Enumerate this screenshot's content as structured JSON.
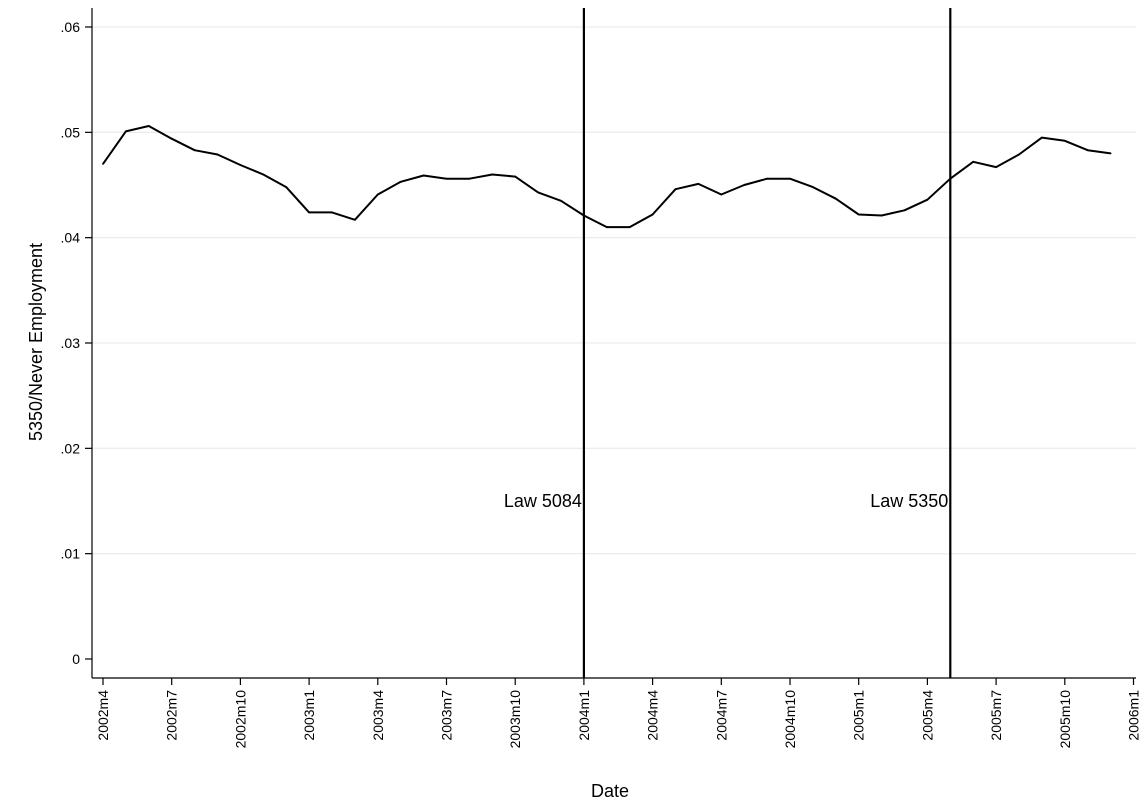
{
  "chart_data": {
    "type": "line",
    "xlabel": "Date",
    "ylabel": "5350/Never Employment",
    "ylim": [
      0,
      0.06
    ],
    "yticks": [
      {
        "value": 0,
        "label": "0"
      },
      {
        "value": 0.01,
        "label": ".01"
      },
      {
        "value": 0.02,
        "label": ".02"
      },
      {
        "value": 0.03,
        "label": ".03"
      },
      {
        "value": 0.04,
        "label": ".04"
      },
      {
        "value": 0.05,
        "label": ".05"
      },
      {
        "value": 0.06,
        "label": ".06"
      }
    ],
    "xticks": [
      "2002m4",
      "2002m7",
      "2002m10",
      "2003m1",
      "2003m4",
      "2003m7",
      "2003m10",
      "2004m1",
      "2004m4",
      "2004m7",
      "2004m10",
      "2005m1",
      "2005m4",
      "2005m7",
      "2005m10",
      "2006m1"
    ],
    "grid": "horizontal",
    "series": [
      {
        "x": [
          "2002m4",
          "2002m5",
          "2002m6",
          "2002m7",
          "2002m8",
          "2002m9",
          "2002m10",
          "2002m11",
          "2002m12",
          "2003m1",
          "2003m2",
          "2003m3",
          "2003m4",
          "2003m5",
          "2003m6",
          "2003m7",
          "2003m8",
          "2003m9",
          "2003m10",
          "2003m11",
          "2003m12",
          "2004m1",
          "2004m2",
          "2004m3",
          "2004m4",
          "2004m5",
          "2004m6",
          "2004m7",
          "2004m8",
          "2004m9",
          "2004m10",
          "2004m11",
          "2004m12",
          "2005m1",
          "2005m2",
          "2005m3",
          "2005m4",
          "2005m5",
          "2005m6",
          "2005m7",
          "2005m8",
          "2005m9",
          "2005m10",
          "2005m11",
          "2005m12"
        ],
        "values": [
          0.047,
          0.0501,
          0.0506,
          0.0494,
          0.0483,
          0.0479,
          0.0469,
          0.046,
          0.0448,
          0.0424,
          0.0424,
          0.0417,
          0.0441,
          0.0453,
          0.0459,
          0.0456,
          0.0456,
          0.046,
          0.0458,
          0.0443,
          0.0435,
          0.0421,
          0.041,
          0.041,
          0.0422,
          0.0446,
          0.0451,
          0.0441,
          0.045,
          0.0456,
          0.0456,
          0.0448,
          0.0437,
          0.0422,
          0.0421,
          0.0426,
          0.0436,
          0.0456,
          0.0472,
          0.0467,
          0.0479,
          0.0495,
          0.0492,
          0.0483,
          0.048
        ]
      }
    ],
    "vlines": [
      {
        "x": "2004m1",
        "label": "Law 5084"
      },
      {
        "x": "2005m5",
        "label": "Law 5350"
      }
    ]
  }
}
